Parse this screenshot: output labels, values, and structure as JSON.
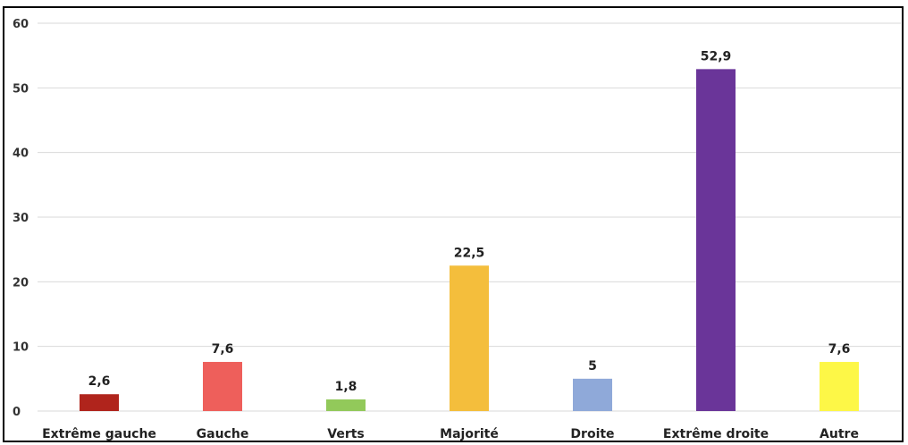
{
  "chart_data": {
    "type": "bar",
    "categories": [
      "Extrême gauche",
      "Gauche",
      "Verts",
      "Majorité",
      "Droite",
      "Extrême droite",
      "Autre"
    ],
    "values": [
      2.6,
      7.6,
      1.8,
      22.5,
      5,
      52.9,
      7.6
    ],
    "value_labels": [
      "2,6",
      "7,6",
      "1,8",
      "22,5",
      "5",
      "52,9",
      "7,6"
    ],
    "colors": [
      "#b0241c",
      "#ee5f5b",
      "#92c95a",
      "#f4be3c",
      "#8fa9d9",
      "#6a3599",
      "#fdf747"
    ],
    "y_ticks": [
      "0",
      "10",
      "20",
      "30",
      "40",
      "50",
      "60"
    ],
    "ylim": [
      0,
      60
    ],
    "grid": true,
    "title": "",
    "xlabel": "",
    "ylabel": ""
  }
}
